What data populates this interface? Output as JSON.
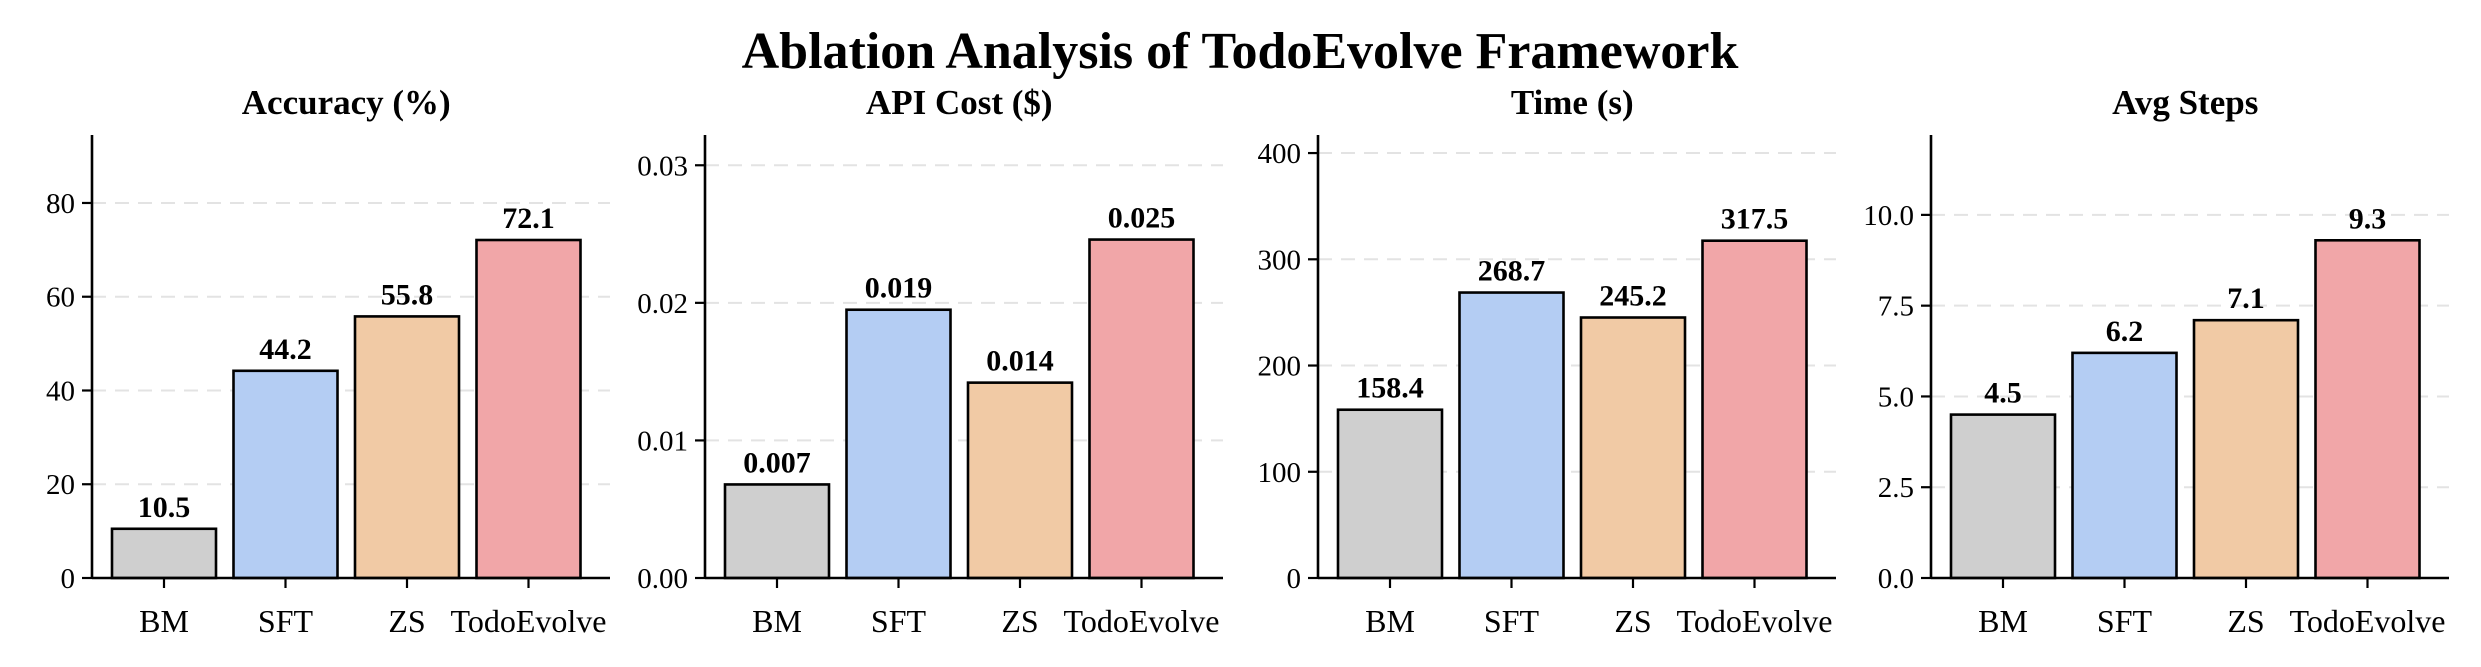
{
  "chart_data": {
    "title": "Ablation Analysis of TodoEvolve Framework",
    "colors": [
      "#cfcfcf",
      "#b4cdf3",
      "#f1ca a5",
      "#f1a6a8"
    ],
    "panels": [
      {
        "type": "bar",
        "title": "Accuracy (%)",
        "categories": [
          "BM",
          "SFT",
          "ZS",
          "TodoEvolve"
        ],
        "values": [
          10.5,
          44.2,
          55.8,
          72.1
        ],
        "labels": [
          "10.5",
          "44.2",
          "55.8",
          "72.1"
        ],
        "ylim": [
          0,
          94.5
        ],
        "yticks": [
          0,
          20,
          40,
          60,
          80
        ],
        "ytick_labels": [
          "0",
          "20",
          "40",
          "60",
          "80"
        ]
      },
      {
        "type": "bar",
        "title": "API Cost ($)",
        "categories": [
          "BM",
          "SFT",
          "ZS",
          "TodoEvolve"
        ],
        "values": [
          0.0068,
          0.0195,
          0.0142,
          0.0246
        ],
        "labels": [
          "0.007",
          "0.019",
          "0.014",
          "0.025"
        ],
        "ylim": [
          0,
          0.0322
        ],
        "yticks": [
          0,
          0.01,
          0.02,
          0.03
        ],
        "ytick_labels": [
          "0.00",
          "0.01",
          "0.02",
          "0.03"
        ]
      },
      {
        "type": "bar",
        "title": "Time (s)",
        "categories": [
          "BM",
          "SFT",
          "ZS",
          "TodoEvolve"
        ],
        "values": [
          158.4,
          268.7,
          245.2,
          317.5
        ],
        "labels": [
          "158.4",
          "268.7",
          "245.2",
          "317.5"
        ],
        "ylim": [
          0,
          417
        ],
        "yticks": [
          0,
          100,
          200,
          300,
          400
        ],
        "ytick_labels": [
          "0",
          "100",
          "200",
          "300",
          "400"
        ]
      },
      {
        "type": "bar",
        "title": "Avg Steps",
        "categories": [
          "BM",
          "SFT",
          "ZS",
          "TodoEvolve"
        ],
        "values": [
          4.5,
          6.2,
          7.1,
          9.3
        ],
        "labels": [
          "4.5",
          "6.2",
          "7.1",
          "9.3"
        ],
        "ylim": [
          0,
          12.2
        ],
        "yticks": [
          0,
          2.5,
          5,
          7.5,
          10
        ],
        "ytick_labels": [
          "0.0",
          "2.5",
          "5.0",
          "7.5",
          "10.0"
        ]
      }
    ]
  }
}
